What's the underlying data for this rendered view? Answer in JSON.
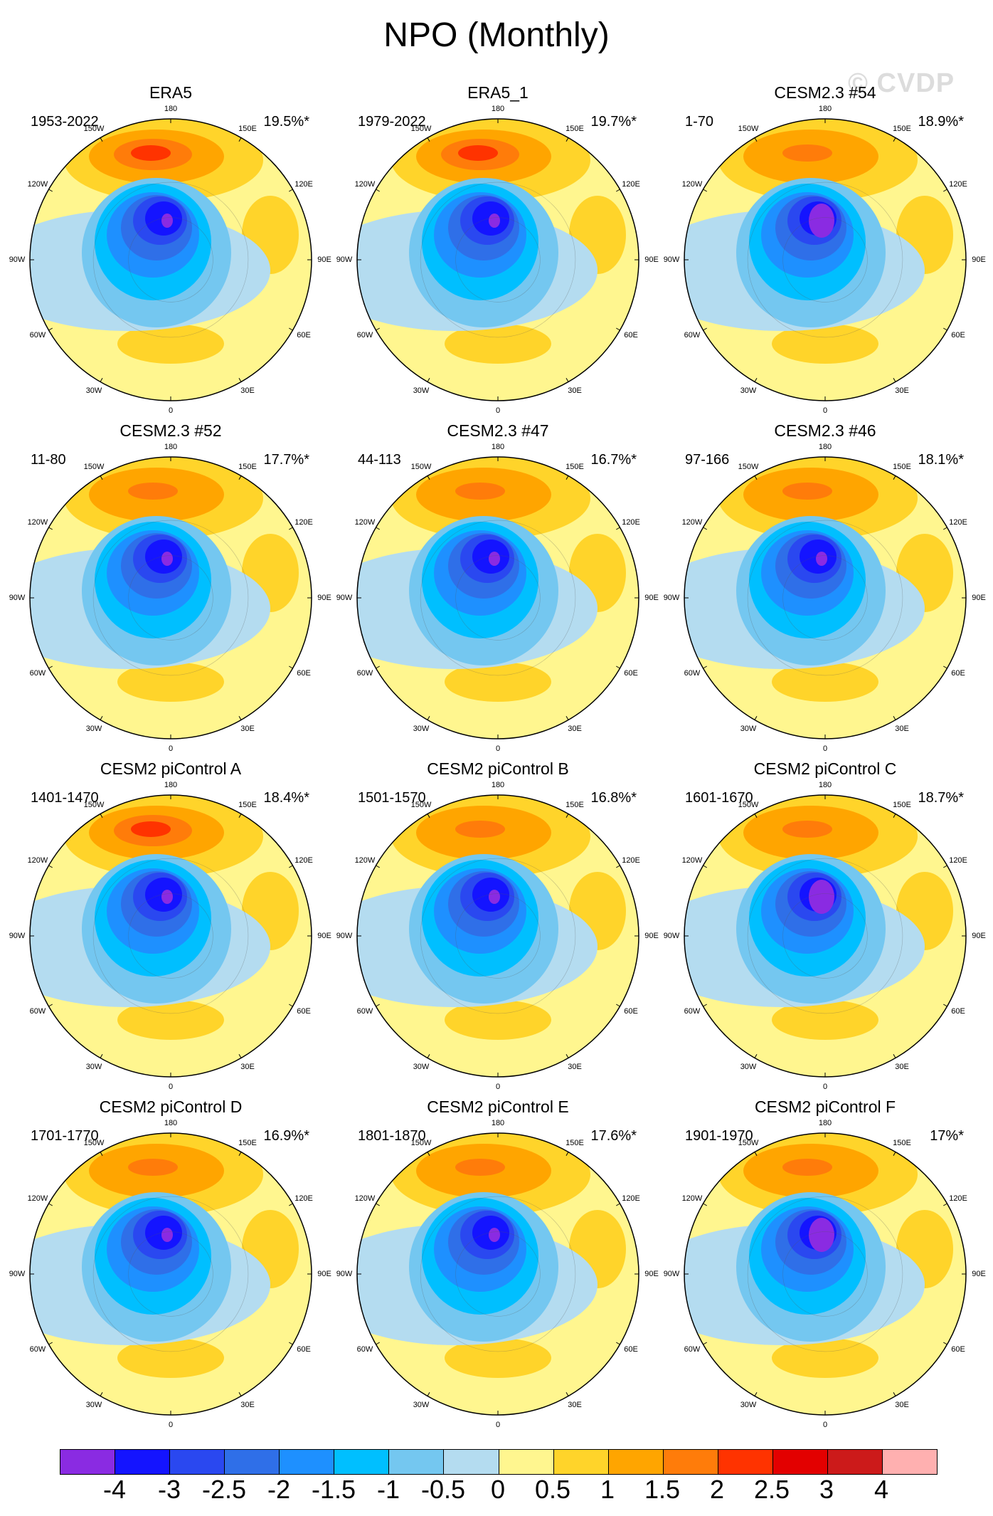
{
  "title": "NPO (Monthly)",
  "watermark": "© CVDP",
  "longitude_labels": [
    "180",
    "150E",
    "120E",
    "90E",
    "60E",
    "30E",
    "0",
    "30W",
    "60W",
    "90W",
    "120W",
    "150W"
  ],
  "panels": [
    {
      "title": "ERA5",
      "range": "1953-2022",
      "pct": "19.5%*"
    },
    {
      "title": "ERA5_1",
      "range": "1979-2022",
      "pct": "19.7%*"
    },
    {
      "title": "CESM2.3 #54",
      "range": "1-70",
      "pct": "18.9%*"
    },
    {
      "title": "CESM2.3 #52",
      "range": "11-80",
      "pct": "17.7%*"
    },
    {
      "title": "CESM2.3 #47",
      "range": "44-113",
      "pct": "16.7%*"
    },
    {
      "title": "CESM2.3 #46",
      "range": "97-166",
      "pct": "18.1%*"
    },
    {
      "title": "CESM2 piControl A",
      "range": "1401-1470",
      "pct": "18.4%*"
    },
    {
      "title": "CESM2 piControl B",
      "range": "1501-1570",
      "pct": "16.8%*"
    },
    {
      "title": "CESM2 piControl C",
      "range": "1601-1670",
      "pct": "18.7%*"
    },
    {
      "title": "CESM2 piControl D",
      "range": "1701-1770",
      "pct": "16.9%*"
    },
    {
      "title": "CESM2 piControl E",
      "range": "1801-1870",
      "pct": "17.6%*"
    },
    {
      "title": "CESM2 piControl F",
      "range": "1901-1970",
      "pct": "17%*"
    }
  ],
  "colorbar": {
    "labels": [
      "-4",
      "-3",
      "-2.5",
      "-2",
      "-1.5",
      "-1",
      "-0.5",
      "0",
      "0.5",
      "1",
      "1.5",
      "2",
      "2.5",
      "3",
      "4"
    ],
    "colors": [
      "#8a2be2",
      "#1414ff",
      "#2a48f0",
      "#2f6fe8",
      "#1e90ff",
      "#00bfff",
      "#74c7f0",
      "#b4dcf0",
      "#fff68f",
      "#ffd42a",
      "#ffa500",
      "#ff7c0a",
      "#ff3300",
      "#e30000",
      "#cc1a1a",
      "#ffb0b0"
    ]
  }
}
